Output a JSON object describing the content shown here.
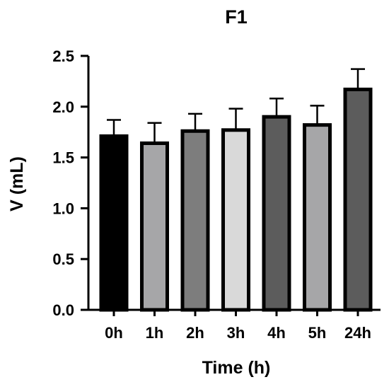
{
  "chart_data": {
    "type": "bar",
    "title": "F1",
    "xlabel": "Time (h)",
    "ylabel": "V (mL)",
    "categories": [
      "0h",
      "1h",
      "2h",
      "3h",
      "4h",
      "5h",
      "24h"
    ],
    "values": [
      1.71,
      1.64,
      1.76,
      1.77,
      1.9,
      1.82,
      2.17
    ],
    "error_upper": [
      1.87,
      1.84,
      1.93,
      1.98,
      2.08,
      2.01,
      2.37
    ],
    "ylim": [
      0,
      2.5
    ],
    "yticks": [
      0.0,
      0.5,
      1.0,
      1.5,
      2.0,
      2.5
    ],
    "ytick_labels": [
      "0.0",
      "0.5",
      "1.0",
      "1.5",
      "2.0",
      "2.5"
    ],
    "grid": false,
    "bar_colors": [
      "#000000",
      "#a6a6a8",
      "#7d7d7d",
      "#d9d9d9",
      "#5c5c5c",
      "#a6a6a8",
      "#5c5c5c"
    ],
    "bar_edge_color": "#000000"
  }
}
